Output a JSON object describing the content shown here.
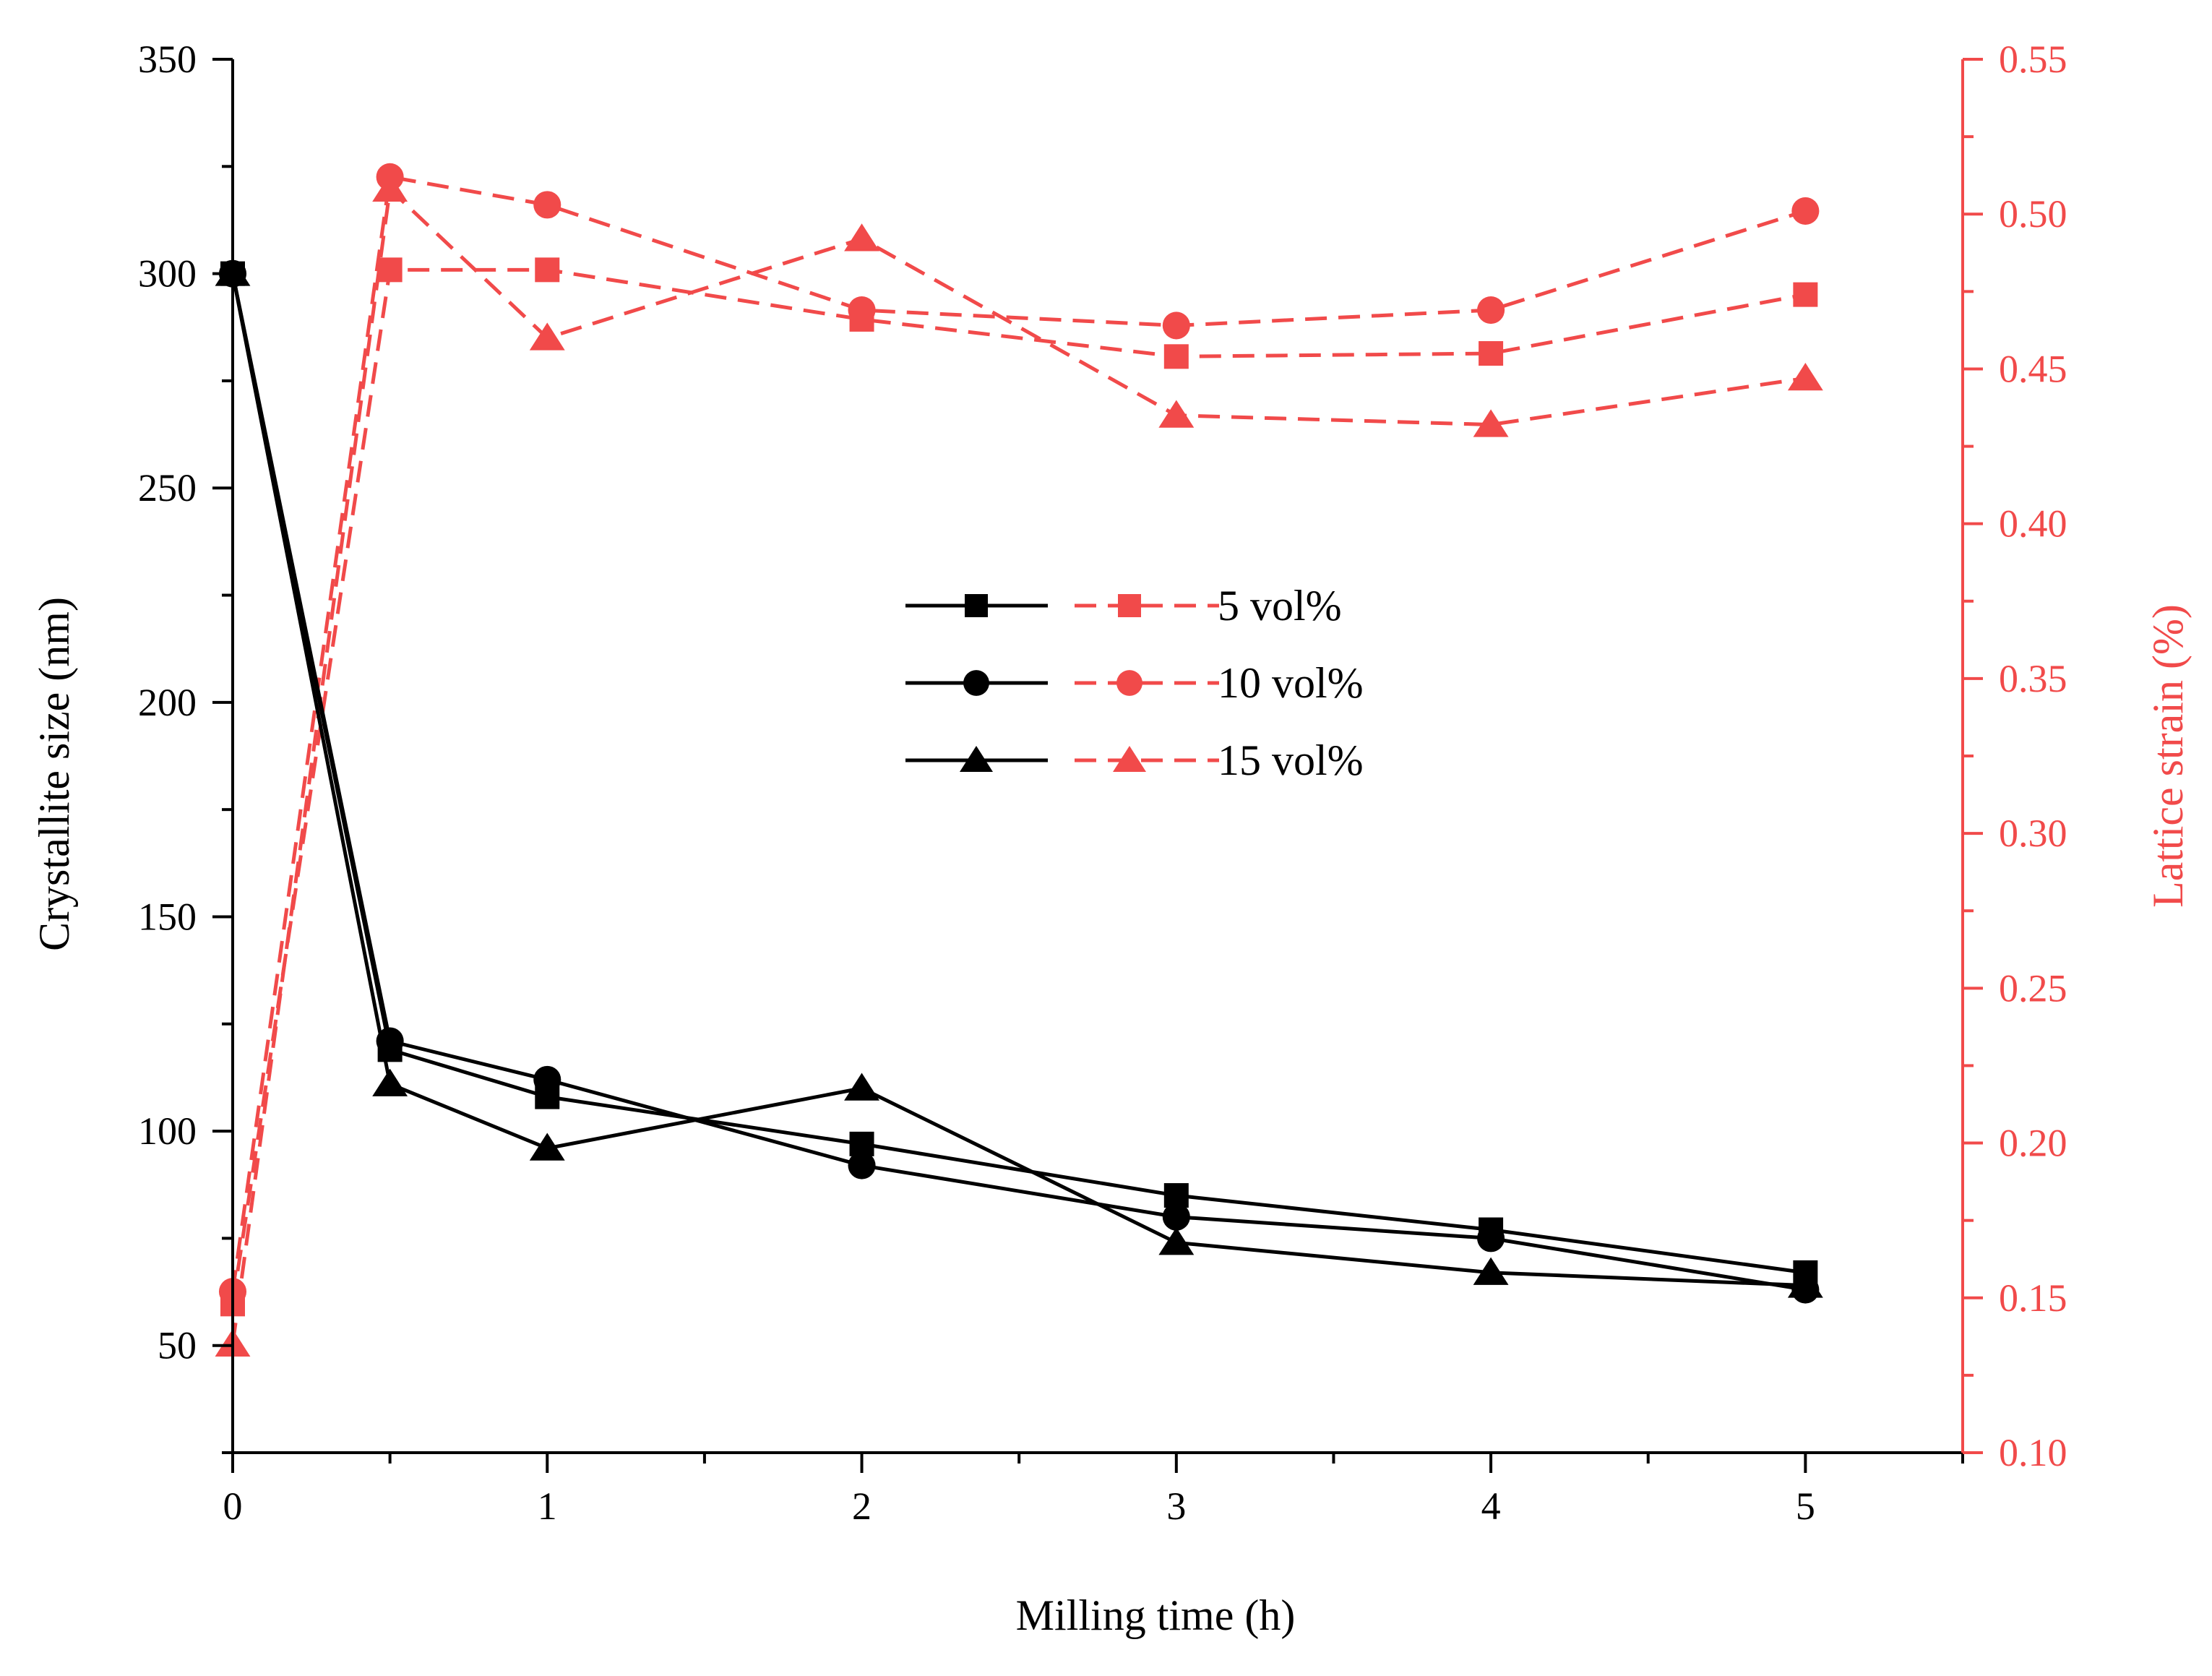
{
  "chart_data": {
    "type": "line",
    "xlabel": "Milling time (h)",
    "ylabel_left": "Crystallite size (nm)",
    "ylabel_right": "Lattice strain (%)",
    "x": [
      0,
      0.5,
      1,
      2,
      3,
      4,
      5
    ],
    "xlim": [
      0,
      5.5
    ],
    "ylim_left": [
      25,
      350
    ],
    "ylim_right": [
      0.1,
      0.55
    ],
    "x_ticks": [
      "0",
      "1",
      "2",
      "3",
      "4",
      "5"
    ],
    "y_left_ticks": [
      "50",
      "100",
      "150",
      "200",
      "250",
      "300",
      "350"
    ],
    "y_right_ticks": [
      "0.10",
      "0.15",
      "0.20",
      "0.25",
      "0.30",
      "0.35",
      "0.40",
      "0.45",
      "0.50",
      "0.55"
    ],
    "legend_position": "center",
    "series": [
      {
        "name": "5 vol%",
        "marker": "square",
        "axis": "left",
        "color": "#000000",
        "style": "solid",
        "values": [
          300,
          119,
          108,
          97,
          85,
          77,
          67
        ]
      },
      {
        "name": "10 vol%",
        "marker": "circle",
        "axis": "left",
        "color": "#000000",
        "style": "solid",
        "values": [
          300,
          121,
          112,
          92,
          80,
          75,
          63
        ]
      },
      {
        "name": "15 vol%",
        "marker": "triangle",
        "axis": "left",
        "color": "#000000",
        "style": "solid",
        "values": [
          300,
          111,
          96,
          110,
          74,
          67,
          64
        ]
      },
      {
        "name": "5 vol%",
        "marker": "square",
        "axis": "right",
        "color": "#f14a4a",
        "style": "dashed",
        "values": [
          0.148,
          0.482,
          0.482,
          0.466,
          0.454,
          0.455,
          0.474
        ]
      },
      {
        "name": "10 vol%",
        "marker": "circle",
        "axis": "right",
        "color": "#f14a4a",
        "style": "dashed",
        "values": [
          0.152,
          0.512,
          0.503,
          0.469,
          0.464,
          0.469,
          0.501
        ]
      },
      {
        "name": "15 vol%",
        "marker": "triangle",
        "axis": "right",
        "color": "#f14a4a",
        "style": "dashed",
        "values": [
          0.135,
          0.508,
          0.46,
          0.492,
          0.435,
          0.432,
          0.447
        ]
      }
    ],
    "legend": [
      {
        "label": "5 vol%",
        "marker": "square"
      },
      {
        "label": "10 vol%",
        "marker": "circle"
      },
      {
        "label": "15 vol%",
        "marker": "triangle"
      }
    ]
  }
}
